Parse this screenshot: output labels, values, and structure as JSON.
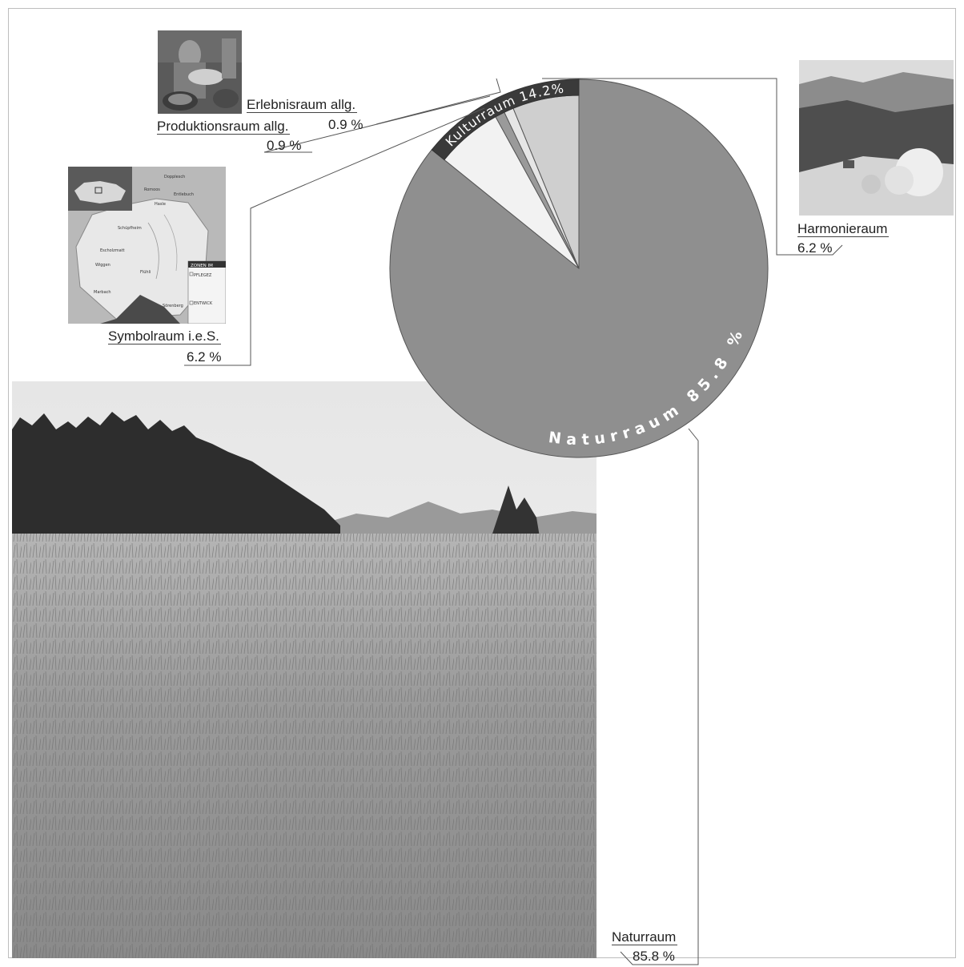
{
  "chart_data": {
    "type": "pie",
    "title": "",
    "slices": [
      {
        "label": "Naturraum",
        "value": 85.8,
        "value_label": "85.8 %",
        "ring_label": "Naturraum 85.8 %",
        "color": "#8f8f8f"
      },
      {
        "label": "Symbolraum i.e.S.",
        "value": 6.2,
        "value_label": "6.2 %",
        "color": "#f2f2f2"
      },
      {
        "label": "Produktionsraum allg.",
        "value": 0.9,
        "value_label": "0.9 %",
        "color": "#9a9a9a"
      },
      {
        "label": "Erlebnisraum allg.",
        "value": 0.9,
        "value_label": "0.9 %",
        "color": "#e6e6e6"
      },
      {
        "label": "Harmonieraum",
        "value": 6.2,
        "value_label": "6.2 %",
        "color": "#cfcfcf"
      }
    ],
    "group": {
      "label": "Kulturraum 14.2%",
      "value": 14.2,
      "color": "#3a3a3a"
    }
  },
  "map_labels": {
    "places": [
      "Dopplesch",
      "Romoos",
      "Entlebuch",
      "Hasle",
      "Schüpfheim",
      "Escholzmatt",
      "Wiggen",
      "Flühli",
      "Marbach",
      "Sörenberg"
    ],
    "legend_title": "ZONEN IM",
    "legend_items": [
      "PFLEGEZ",
      "ENTWICK"
    ]
  }
}
